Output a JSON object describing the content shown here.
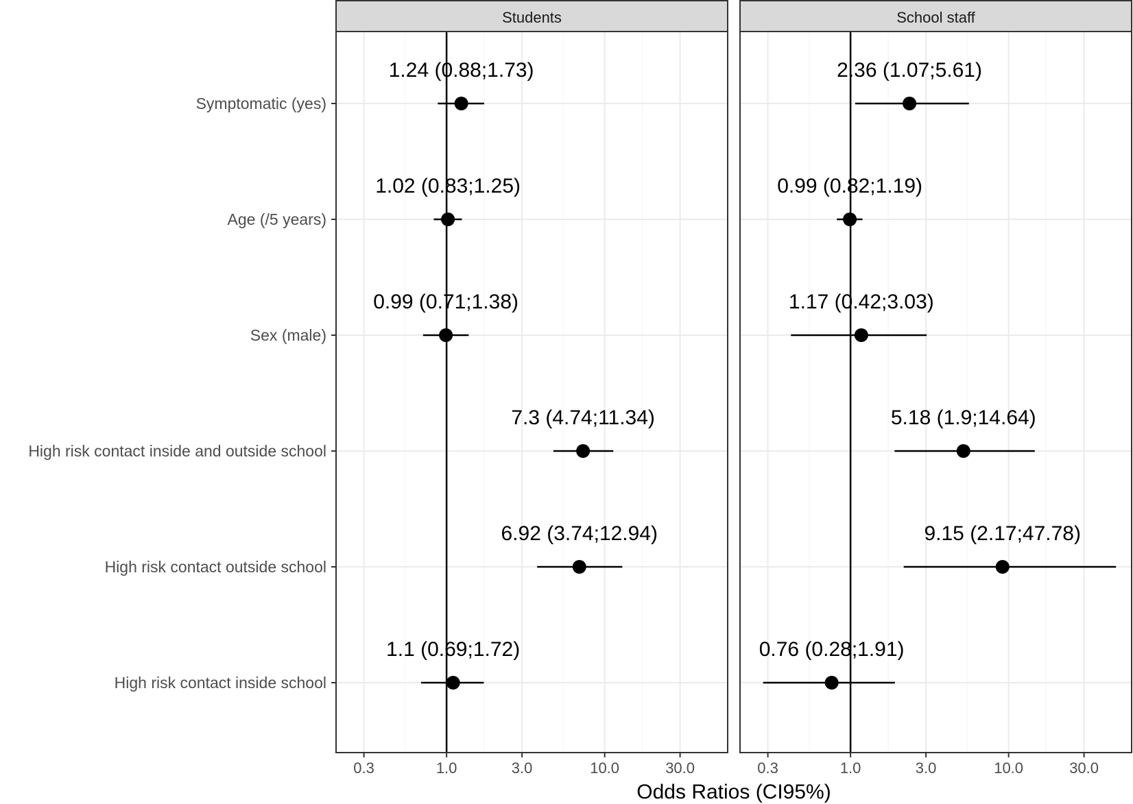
{
  "chart_data": {
    "type": "scatter",
    "subtype": "forest-plot",
    "xlabel": "Odds Ratios (CI95%)",
    "x_scale": "log",
    "xlim": [
      0.2,
      60
    ],
    "x_ticks": [
      0.3,
      1.0,
      3.0,
      10.0,
      30.0
    ],
    "x_tick_labels": [
      "0.3",
      "1.0",
      "3.0",
      "10.0",
      "30.0"
    ],
    "x_minor_ticks": [
      0.54772,
      1.73205,
      5.47723,
      17.3205
    ],
    "reference_line": 1,
    "categories": [
      "Symptomatic (yes)",
      "Age (/5 years)",
      "Sex (male)",
      "High risk contact inside and outside school",
      "High risk contact outside school",
      "High risk contact inside school"
    ],
    "panels": [
      {
        "title": "Students",
        "points": [
          {
            "or": 1.24,
            "lo": 0.88,
            "hi": 1.73,
            "label": "1.24 (0.88;1.73)"
          },
          {
            "or": 1.02,
            "lo": 0.83,
            "hi": 1.25,
            "label": "1.02 (0.83;1.25)"
          },
          {
            "or": 0.99,
            "lo": 0.71,
            "hi": 1.38,
            "label": "0.99 (0.71;1.38)"
          },
          {
            "or": 7.3,
            "lo": 4.74,
            "hi": 11.34,
            "label": "7.3 (4.74;11.34)"
          },
          {
            "or": 6.92,
            "lo": 3.74,
            "hi": 12.94,
            "label": "6.92 (3.74;12.94)"
          },
          {
            "or": 1.1,
            "lo": 0.69,
            "hi": 1.72,
            "label": "1.1 (0.69;1.72)"
          }
        ]
      },
      {
        "title": "School staff",
        "points": [
          {
            "or": 2.36,
            "lo": 1.07,
            "hi": 5.61,
            "label": "2.36 (1.07;5.61)"
          },
          {
            "or": 0.99,
            "lo": 0.82,
            "hi": 1.19,
            "label": "0.99 (0.82;1.19)"
          },
          {
            "or": 1.17,
            "lo": 0.42,
            "hi": 3.03,
            "label": "1.17 (0.42;3.03)"
          },
          {
            "or": 5.18,
            "lo": 1.9,
            "hi": 14.64,
            "label": "5.18 (1.9;14.64)"
          },
          {
            "or": 9.15,
            "lo": 2.17,
            "hi": 47.78,
            "label": "9.15 (2.17;47.78)"
          },
          {
            "or": 0.76,
            "lo": 0.28,
            "hi": 1.91,
            "label": "0.76 (0.28;1.91)"
          }
        ]
      }
    ],
    "colors": {
      "panel_border": "#333333",
      "strip_fill": "#d9d9d9",
      "grid_major": "#ebebeb",
      "grid_minor": "#f4f4f4",
      "point": "#000000",
      "text_axis": "#4d4d4d"
    },
    "grid": true,
    "legend": "none"
  }
}
